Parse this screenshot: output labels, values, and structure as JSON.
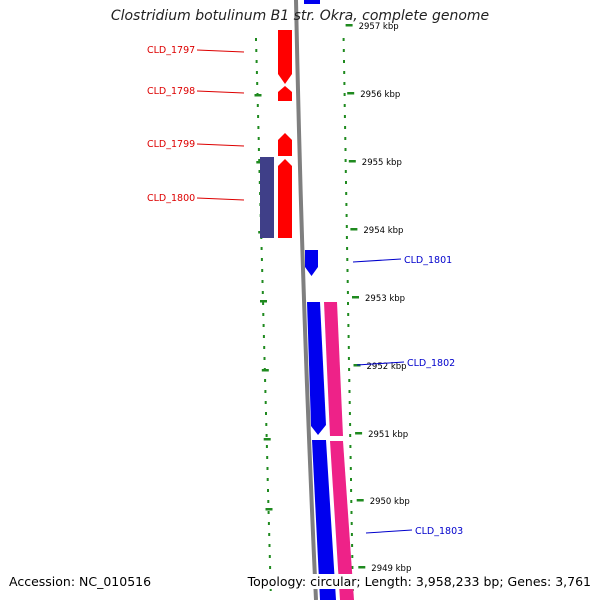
{
  "title": "Clostridium botulinum B1 str. Okra, complete genome",
  "footer": {
    "accession": "Accession: NC_010516",
    "summary": "Topology: circular; Length: 3,958,233 bp; Genes: 3,761"
  },
  "colors": {
    "backbone": "#7f7f7f",
    "tick": "#1f8a1f",
    "gene_label_left": "#dd0000",
    "gene_label_right": "#0000cc",
    "forward_strand": "#0000ee",
    "reverse_strand": "#ff0000",
    "feature_purple": "#3f3f88",
    "feature_pink": "#ee2288",
    "kbp_label": "#000000"
  },
  "kbp_labels": [
    "2957 kbp",
    "2956 kbp",
    "2955 kbp",
    "2954 kbp",
    "2953 kbp",
    "2952 kbp",
    "2951 kbp",
    "2950 kbp",
    "2949 kbp"
  ],
  "genes_left": [
    "CLD_1797",
    "CLD_1798",
    "CLD_1799",
    "CLD_1800"
  ],
  "genes_right": [
    "CLD_1801",
    "CLD_1802",
    "CLD_1803"
  ]
}
